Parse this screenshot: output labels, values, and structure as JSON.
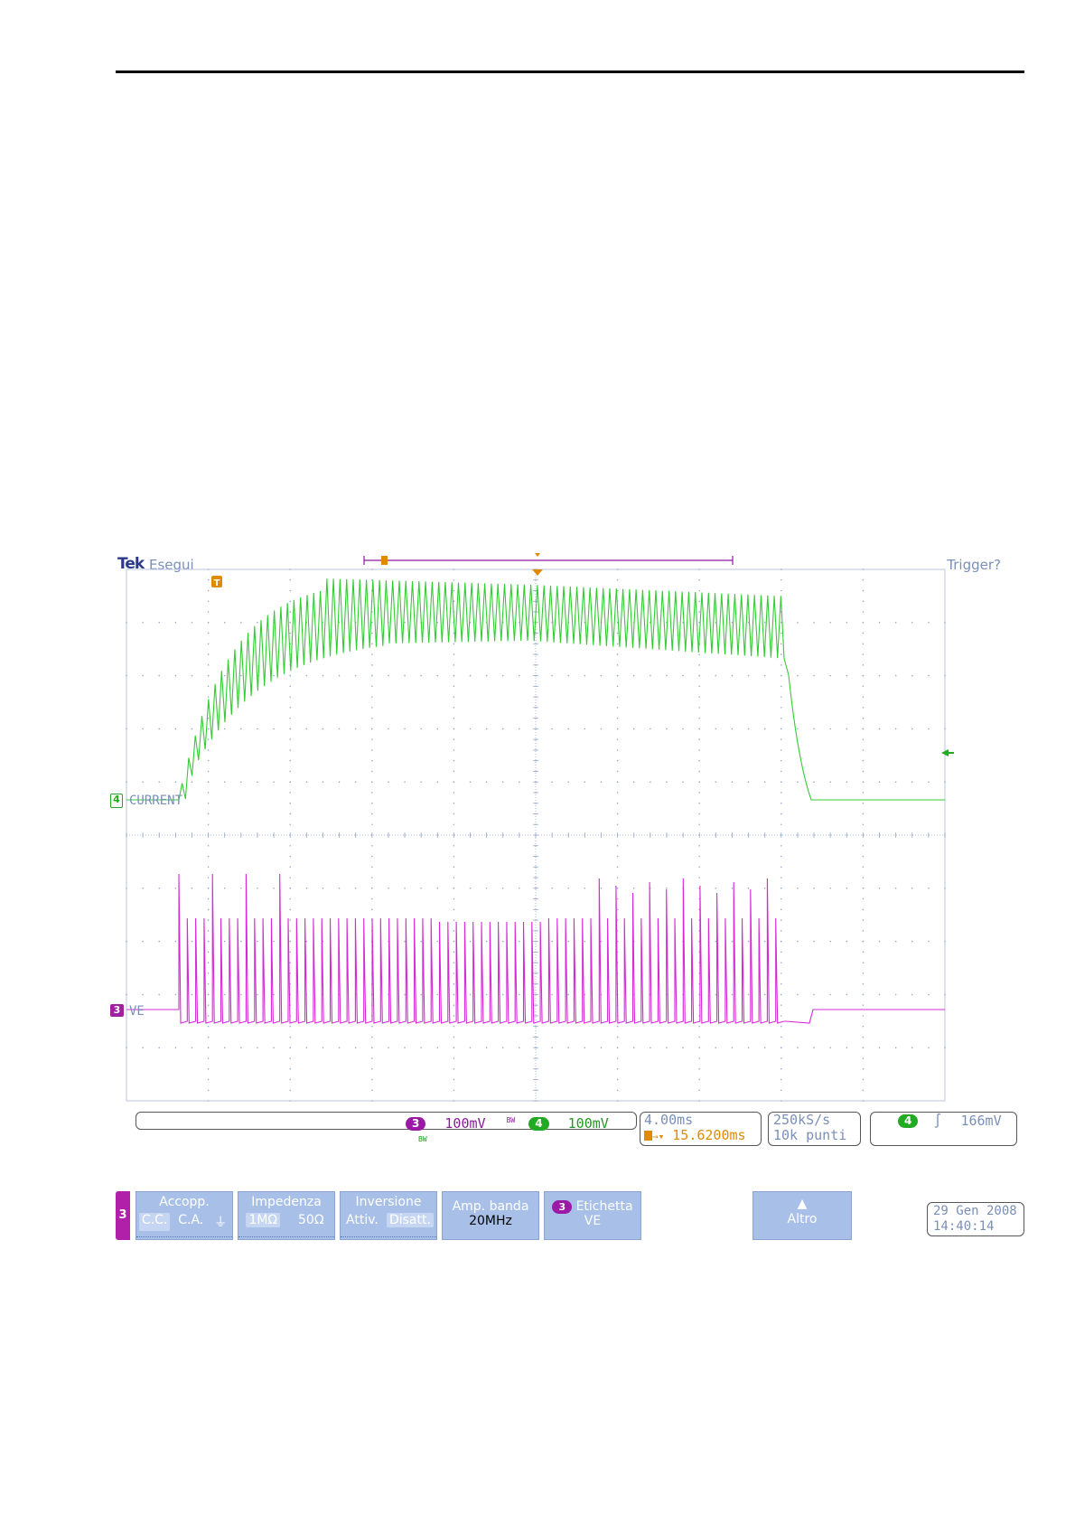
{
  "scope": {
    "brand": "Tek",
    "run_state": "Esegui",
    "trigger_status": "Trigger?",
    "channels": [
      {
        "number": "4",
        "label": "CURRENT",
        "color": "#22bb22"
      },
      {
        "number": "3",
        "label": "VE",
        "color": "#cc22cc"
      }
    ],
    "trigger_marker": "T"
  },
  "readouts": {
    "ch3_badge": "3",
    "ch3_scale": "100mV",
    "ch4_badge": "4",
    "ch4_scale": "100mV",
    "bw_symbol": "BW",
    "timebase": "4.00ms",
    "trigger_delay": "15.6200ms",
    "sample_rate": "250kS/s",
    "record_length": "10k punti",
    "trigger_source": "4",
    "trigger_slope_icon": "rising-edge-icon",
    "trigger_level": "166mV"
  },
  "menu": {
    "channel_tab": "3",
    "coupling": {
      "title": "Accopp.",
      "options": [
        "C.C.",
        "C.A.",
        "⏚"
      ],
      "selected": "C.C."
    },
    "impedance": {
      "title": "Impedenza",
      "options": [
        "1MΩ",
        "50Ω"
      ],
      "selected": "1MΩ"
    },
    "invert": {
      "title": "Inversione",
      "options": [
        "Attiv.",
        "Disatt."
      ],
      "selected": "Disatt."
    },
    "bandwidth": {
      "title": "Amp. banda",
      "value": "20MHz"
    },
    "label": {
      "badge": "3",
      "title": "Etichetta",
      "value": "VE"
    },
    "more": {
      "title": "Altro",
      "icon": "arrow-up-icon"
    },
    "date": "29 Gen 2008",
    "time": "14:40:14"
  },
  "colors": {
    "ch3": "#cc22cc",
    "ch4": "#22bb22",
    "grid": "#8a9ab8",
    "trigger": "#e08a00"
  }
}
